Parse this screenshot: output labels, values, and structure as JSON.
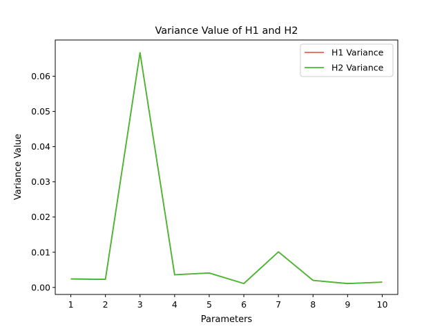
{
  "chart_data": {
    "type": "line",
    "title": "Variance Value of H1 and H2",
    "xlabel": "Parameters",
    "ylabel": "Variance Value",
    "x": [
      1,
      2,
      3,
      4,
      5,
      6,
      7,
      8,
      9,
      10
    ],
    "xlim": [
      0.55,
      10.45
    ],
    "ylim": [
      -0.002,
      0.0703
    ],
    "yticks": [
      0.0,
      0.01,
      0.02,
      0.03,
      0.04,
      0.05,
      0.06
    ],
    "ytick_labels": [
      "0.00",
      "0.01",
      "0.02",
      "0.03",
      "0.04",
      "0.05",
      "0.06"
    ],
    "xtick_labels": [
      "1",
      "2",
      "3",
      "4",
      "5",
      "6",
      "7",
      "8",
      "9",
      "10"
    ],
    "grid": false,
    "legend_position": "top-right",
    "series": [
      {
        "name": "H1 Variance",
        "color": "#e8604c",
        "values": [
          0.0024,
          0.0023,
          0.0667,
          0.0036,
          0.0041,
          0.0011,
          0.0101,
          0.002,
          0.0011,
          0.0015
        ]
      },
      {
        "name": "H2 Variance",
        "color": "#44bb33",
        "values": [
          0.0024,
          0.0023,
          0.0667,
          0.0036,
          0.0041,
          0.0011,
          0.0101,
          0.002,
          0.0011,
          0.0015
        ]
      }
    ]
  }
}
